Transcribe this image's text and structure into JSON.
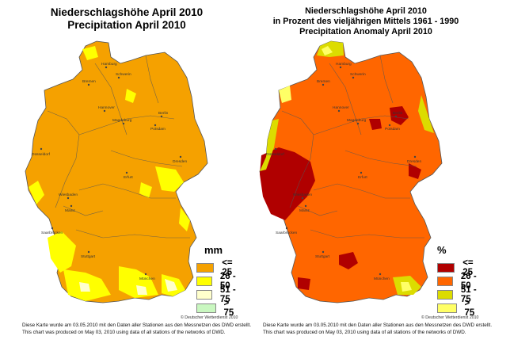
{
  "left_map": {
    "title_line1": "Niederschlagshöhe April 2010",
    "title_line2": "Precipitation April 2010",
    "legend": {
      "unit": "mm",
      "items": [
        {
          "label": "<= 25",
          "color": "#f5a100"
        },
        {
          "label": "26 - 50",
          "color": "#ffff00"
        },
        {
          "label": "51 - 75",
          "color": "#ffffcc"
        },
        {
          "label": "> 75",
          "color": "#c9f7c0"
        }
      ]
    },
    "credit": "© Deutscher Wetterdienst 2010",
    "note_de": "Diese Karte wurde am 03.05.2010 mit den Daten aller Stationen aus den Messnetzen des DWD erstellt.",
    "note_en": "This chart was produced on May 03, 2010 using data of all stations of the networks of DWD."
  },
  "right_map": {
    "title_line1": "Niederschlagshöhe April 2010",
    "title_line2": "in Prozent des vieljährigen Mittels 1961 - 1990",
    "title_line3": "Precipitation Anomaly April 2010",
    "legend": {
      "unit": "%",
      "items": [
        {
          "label": "<= 25",
          "color": "#b00000"
        },
        {
          "label": "26 - 50",
          "color": "#ff6600"
        },
        {
          "label": "51 - 75",
          "color": "#dcdc00"
        },
        {
          "label": "> 75",
          "color": "#ffff66"
        }
      ]
    },
    "credit": "© Deutscher Wetterdienst 2010",
    "note_de": "Diese Karte wurde am 03.05.2010 mit den Daten aller Stationen aus den Messnetzen des DWD erstellt.",
    "note_en": "This chart was produced on May 03, 2010 using data of all stations of the networks of DWD."
  },
  "cities": [
    {
      "name": "Hamburg"
    },
    {
      "name": "Schwerin"
    },
    {
      "name": "Bremen"
    },
    {
      "name": "Hannover"
    },
    {
      "name": "Berlin"
    },
    {
      "name": "Potsdam"
    },
    {
      "name": "Magdeburg"
    },
    {
      "name": "Düsseldorf"
    },
    {
      "name": "Erfurt"
    },
    {
      "name": "Dresden"
    },
    {
      "name": "Wiesbaden"
    },
    {
      "name": "Mainz"
    },
    {
      "name": "Saarbrücken"
    },
    {
      "name": "Stuttgart"
    },
    {
      "name": "München"
    }
  ]
}
